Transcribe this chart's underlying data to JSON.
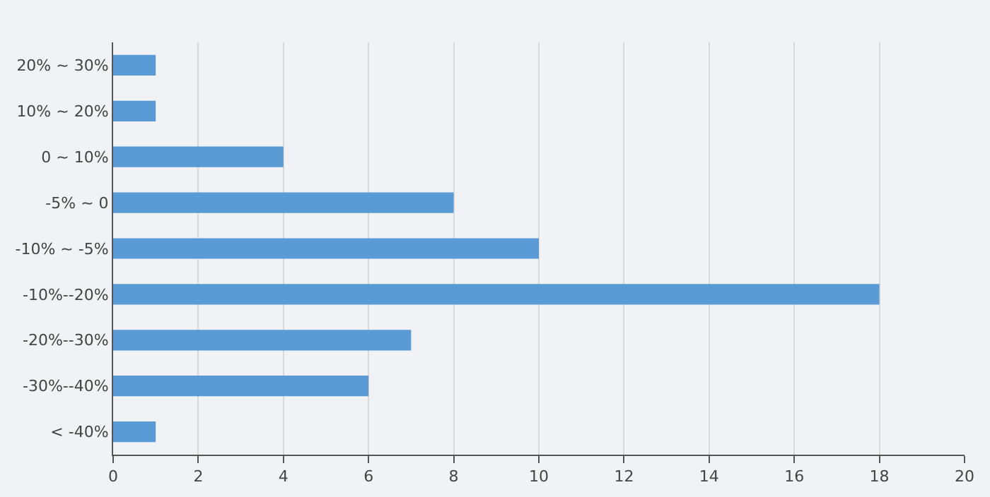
{
  "chart_data": {
    "type": "bar",
    "orientation": "horizontal",
    "categories": [
      "20% ~ 30%",
      "10% ~ 20%",
      "0 ~ 10%",
      "-5% ~ 0",
      "-10% ~ -5%",
      "-10%--20%",
      "-20%--30%",
      "-30%--40%",
      "< -40%"
    ],
    "values": [
      1,
      1,
      4,
      8,
      10,
      18,
      7,
      6,
      1
    ],
    "color": "#5b9bd5",
    "xlim": [
      0,
      20
    ],
    "xticks": [
      0,
      2,
      4,
      6,
      8,
      10,
      12,
      14,
      16,
      18,
      20
    ],
    "grid": "x"
  }
}
